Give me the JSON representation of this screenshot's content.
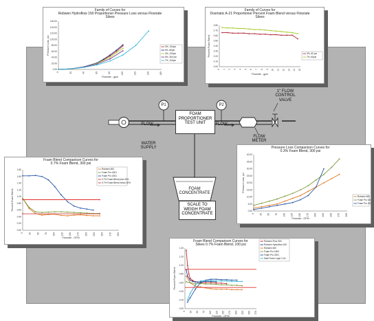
{
  "diagram": {
    "p1": "P1",
    "p2": "P2",
    "flow_left": "FLOW",
    "flow_right": "FLOW",
    "water_supply": "WATER\nSUPPLY",
    "test_unit": "FOAM\nPROPORTIONER\nTEST UNIT",
    "flow_meter": "FLOW\nMETER",
    "control_valve": "1\" FLOW\nCONTROL\nVALVE",
    "foam_concentrate": "FOAM\nCONCENTRATE",
    "scale": "SCALE TO\nWEIGH FOAM\nCONCENTRATE"
  },
  "chart_data": [
    {
      "type": "line",
      "title": "Family of Curves for\nRobwen Hydroflow 150 Proportioner Pressure Loss versus Flowrate\nSilves",
      "xlabel": "Flowrate - gpm",
      "ylabel": "Pressure Loss, psi",
      "xlim": [
        0,
        160
      ],
      "ylim": [
        0,
        160
      ],
      "x_ticks": [
        "0",
        "20",
        "40",
        "60",
        "80",
        "100",
        "120",
        "140",
        "160"
      ],
      "y_ticks": [
        "0.00",
        "20.00",
        "40.00",
        "60.00",
        "80.00",
        "100.00",
        "120.00",
        "140.00",
        "160.00"
      ],
      "legend": [
        "3%, 100psi",
        "6%, 80psi",
        "3%, 100psi",
        "6%, 300 psi",
        "7%, 100psi"
      ],
      "series": [
        {
          "name": "3%, 100psi",
          "color": "#c0392b",
          "x": [
            0,
            20,
            40,
            60,
            70,
            80,
            90,
            100
          ],
          "y": [
            0,
            2,
            8,
            20,
            32,
            45,
            60,
            78
          ]
        },
        {
          "name": "6%, 80psi",
          "color": "#243a8c",
          "x": [
            0,
            20,
            40,
            60,
            70,
            80,
            90,
            100
          ],
          "y": [
            0,
            2,
            9,
            22,
            34,
            48,
            64,
            82
          ]
        },
        {
          "name": "3%, 100psi",
          "color": "#a9cc2e",
          "x": [
            0,
            20,
            40,
            60,
            80,
            100
          ],
          "y": [
            0,
            2,
            8,
            20,
            40,
            70
          ]
        },
        {
          "name": "6%, 300 psi",
          "color": "#7b3fa0",
          "x": [
            0,
            20,
            40,
            60,
            80,
            100
          ],
          "y": [
            0,
            2,
            8,
            18,
            35,
            62
          ]
        },
        {
          "name": "7%, 100psi",
          "color": "#31b7d6",
          "x": [
            0,
            20,
            40,
            60,
            80,
            100,
            120,
            140
          ],
          "y": [
            0,
            2,
            7,
            15,
            28,
            48,
            80,
            128
          ]
        }
      ]
    },
    {
      "type": "line",
      "title": "Family of Curves for\nDosmatic A-21 Proportioner Percent Foam Blend versus Flowrate\nSilves",
      "xlabel": "Flowrate - gpm",
      "ylabel": "Percent Foam Blend",
      "ylim": [
        0,
        0.8
      ],
      "x_ticks": [
        "0",
        "1",
        "2",
        "3",
        "4",
        "5",
        "6",
        "7",
        "8",
        "9",
        "10",
        "11",
        "12",
        "13",
        "14",
        "15"
      ],
      "y_ticks": [
        "0.00",
        "0.10",
        "0.20",
        "0.30",
        "0.40",
        "0.50",
        "0.60",
        "0.70",
        "0.80"
      ],
      "legend": [
        "3%, 60 psi",
        "7%, 60psi"
      ],
      "series": [
        {
          "name": "3%, 60 psi",
          "color": "#b03040",
          "x": [
            1,
            2,
            3,
            4,
            5,
            6,
            7,
            8,
            9,
            10,
            11,
            12,
            13,
            14,
            15
          ],
          "y": [
            0.66,
            0.66,
            0.65,
            0.65,
            0.65,
            0.64,
            0.64,
            0.63,
            0.63,
            0.62,
            0.62,
            0.61,
            0.61,
            0.61,
            0.54
          ]
        },
        {
          "name": "7%, 60psi",
          "color": "#a9cc2e",
          "x": [
            1,
            2,
            3,
            4,
            5,
            6,
            7,
            8,
            9,
            10,
            11,
            12,
            13,
            14,
            15
          ],
          "y": [
            0.76,
            0.75,
            0.75,
            0.74,
            0.74,
            0.73,
            0.72,
            0.72,
            0.71,
            0.7,
            0.69,
            0.68,
            0.67,
            0.66,
            0.64
          ]
        }
      ]
    },
    {
      "type": "line",
      "title": "Foam Blend Comparison Curves for\n0.7% Foam Blend, 300 psi",
      "xlabel": "Flowrate - GPM",
      "ylabel": "Percent Foam Blend",
      "xlim": [
        0,
        300
      ],
      "ylim": [
        0,
        1.8
      ],
      "x_ticks": [
        "0",
        "25",
        "50",
        "75",
        "100",
        "125",
        "150",
        "175",
        "200",
        "225",
        "250",
        "275",
        "300"
      ],
      "y_ticks": [
        "0.00",
        "0.20",
        "0.40",
        "0.60",
        "0.80",
        "1.00",
        "1.20",
        "1.40",
        "1.60",
        "1.80"
      ],
      "legend": [
        "Robwen 600",
        "Foam Pro 1601",
        "Foam Pro 2001",
        "0.7% Foam Blend plus 30%",
        "0.7% Foam Blend minus 30%"
      ],
      "series": [
        {
          "name": "Robwen 600",
          "color": "#e07a25",
          "x": [
            0,
            20,
            40,
            60,
            80,
            100,
            120,
            140,
            160,
            180,
            200,
            220,
            240
          ],
          "y": [
            0.95,
            0.65,
            0.5,
            0.45,
            0.47,
            0.48,
            0.44,
            0.43,
            0.45,
            0.46,
            0.44,
            0.43,
            0.43
          ]
        },
        {
          "name": "Foam Pro 1601",
          "color": "#7d9a3a",
          "x": [
            0,
            20,
            40,
            60,
            80,
            100,
            120,
            140,
            160,
            180,
            200,
            220,
            240
          ],
          "y": [
            0.95,
            0.68,
            0.55,
            0.53,
            0.54,
            0.55,
            0.55,
            0.54,
            0.53,
            0.52,
            0.51,
            0.5,
            0.5
          ]
        },
        {
          "name": "Foam Pro 2001",
          "color": "#2a58a8",
          "x": [
            0,
            20,
            40,
            60,
            80,
            100,
            120,
            140,
            160,
            180,
            200,
            220
          ],
          "y": [
            1.62,
            1.62,
            1.63,
            1.6,
            1.5,
            1.3,
            1.05,
            0.85,
            0.72,
            0.66,
            0.63,
            0.6
          ]
        },
        {
          "name": "0.7% Foam Blend plus 30%",
          "color": "#e03030",
          "x": [
            0,
            240
          ],
          "y": [
            0.91,
            0.91
          ]
        },
        {
          "name": "0.7% Foam Blend minus 30%",
          "color": "#d04040",
          "x": [
            0,
            240
          ],
          "y": [
            0.49,
            0.49
          ]
        }
      ]
    },
    {
      "type": "line",
      "title": "Pressure Loss Comparison Curves for\n0.3% Foam Blend, 300 psi",
      "xlabel": "Flowrate - GPM",
      "ylabel": "Pressure Loss, psi",
      "xlim": [
        0,
        300
      ],
      "ylim": [
        0,
        40
      ],
      "x_ticks": [
        "0",
        "25",
        "50",
        "75",
        "100",
        "125",
        "150",
        "175",
        "200",
        "225",
        "250",
        "275",
        "300"
      ],
      "y_ticks": [
        "0.00",
        "5.00",
        "10.00",
        "15.00",
        "20.00",
        "25.00",
        "30.00",
        "35.00",
        "40.00"
      ],
      "legend": [
        "Robwen 600",
        "Foam Pro 1601",
        "Foam Pro 2001"
      ],
      "series": [
        {
          "name": "Robwen 600",
          "color": "#e07a25",
          "x": [
            0,
            25,
            50,
            75,
            100,
            125,
            150,
            175,
            200,
            225,
            250,
            275
          ],
          "y": [
            2,
            3,
            4,
            5,
            7,
            9,
            11,
            14,
            17,
            20,
            23,
            26
          ]
        },
        {
          "name": "Foam Pro 1601",
          "color": "#7d9a3a",
          "x": [
            0,
            25,
            50,
            75,
            100,
            125,
            150,
            175,
            200,
            225,
            250,
            275
          ],
          "y": [
            4,
            5.5,
            7,
            8.5,
            10.5,
            12.5,
            15,
            18,
            22,
            26,
            31,
            37
          ]
        },
        {
          "name": "Foam Pro 2001",
          "color": "#2a58a8",
          "x": [
            0,
            25,
            50,
            75,
            100,
            125,
            150,
            175,
            200,
            225
          ],
          "y": [
            1,
            2,
            3,
            4,
            5,
            6,
            8,
            11,
            17,
            30
          ]
        }
      ]
    },
    {
      "type": "line",
      "title": "Foam Blend Comparison Curves for\nSilves 0.7% Foam Blend, 100 psi",
      "xlabel": "Flowrate - GPM",
      "ylabel": "Percent Foam Blend",
      "xlim": [
        0,
        275
      ],
      "ylim": [
        0,
        1.4
      ],
      "x_ticks": [
        "0",
        "25",
        "50",
        "75",
        "100",
        "125",
        "150",
        "175",
        "200",
        "225",
        "250",
        "275"
      ],
      "y_ticks": [
        "0.00",
        "0.20",
        "0.40",
        "0.60",
        "0.80",
        "1.00",
        "1.20",
        "1.40"
      ],
      "legend": [
        "Robwen Flow 300",
        "Robwen Hydroflow 150",
        "Robwen 600",
        "Foam Pro 1600",
        "Foam Pro 2001",
        "Hale Foam Logix 2.1A"
      ],
      "series": [
        {
          "name": "Robwen Flow 300",
          "color": "#c02828",
          "x": [
            5,
            10,
            15,
            20,
            30,
            40,
            60,
            80,
            100,
            120,
            140,
            160
          ],
          "y": [
            1.35,
            1.0,
            0.8,
            0.7,
            0.65,
            0.62,
            0.6,
            0.6,
            0.6,
            0.59,
            0.59,
            0.58
          ]
        },
        {
          "name": "Robwen Hydroflow 150",
          "color": "#243a8c",
          "x": [
            5,
            10,
            20,
            30,
            40,
            60,
            80,
            100,
            120
          ],
          "y": [
            0.9,
            0.75,
            0.66,
            0.63,
            0.62,
            0.62,
            0.63,
            0.63,
            0.62
          ]
        },
        {
          "name": "Robwen 600",
          "color": "#e07a25",
          "x": [
            5,
            20,
            40,
            60,
            80,
            100,
            120,
            140,
            160,
            180,
            200,
            220
          ],
          "y": [
            0.75,
            0.6,
            0.52,
            0.5,
            0.48,
            0.46,
            0.45,
            0.45,
            0.45,
            0.44,
            0.44,
            0.44
          ]
        },
        {
          "name": "Foam Pro 1600",
          "color": "#7d9a3a",
          "x": [
            5,
            20,
            40,
            60,
            80,
            100,
            120,
            140,
            160,
            180,
            200,
            220
          ],
          "y": [
            0.62,
            0.6,
            0.58,
            0.58,
            0.57,
            0.57,
            0.56,
            0.55,
            0.55,
            0.54,
            0.54,
            0.53
          ]
        },
        {
          "name": "Foam Pro 2001",
          "color": "#2a58a8",
          "x": [
            10,
            20,
            40,
            60,
            80,
            100,
            120,
            140,
            160,
            180,
            200
          ],
          "y": [
            0.15,
            0.25,
            0.45,
            0.6,
            0.66,
            0.68,
            0.68,
            0.67,
            0.67,
            0.66,
            0.66
          ]
        },
        {
          "name": "Hale Foam Logix 2.1A",
          "color": "#31b7d6",
          "x": [
            10,
            20,
            40,
            60,
            80,
            100,
            120,
            140,
            160,
            180,
            200,
            220
          ],
          "y": [
            0.2,
            0.35,
            0.55,
            0.64,
            0.65,
            0.65,
            0.64,
            0.64,
            0.64,
            0.63,
            0.63,
            0.63
          ]
        },
        {
          "name": "",
          "color": "#e03030",
          "x": [
            0,
            275
          ],
          "y": [
            0.91,
            0.91
          ]
        },
        {
          "name": "",
          "color": "#e03030",
          "x": [
            0,
            275
          ],
          "y": [
            0.49,
            0.49
          ]
        }
      ]
    }
  ]
}
